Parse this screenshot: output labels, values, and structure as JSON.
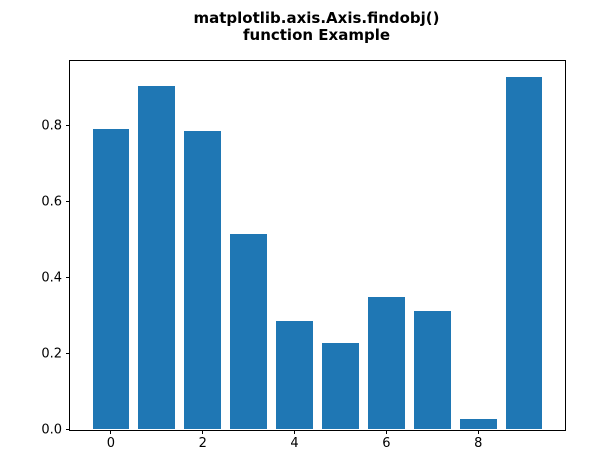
{
  "title": "matplotlib.axis.Axis.findobj()\nfunction Example",
  "colors": {
    "bar": "#1f77b4",
    "spine": "#000000",
    "text": "#000000",
    "background": "#ffffff"
  },
  "chart_data": {
    "type": "bar",
    "title": "matplotlib.axis.Axis.findobj()\nfunction Example",
    "xlabel": "",
    "ylabel": "",
    "x": [
      0,
      1,
      2,
      3,
      4,
      5,
      6,
      7,
      8,
      9
    ],
    "values": [
      0.79,
      0.905,
      0.785,
      0.515,
      0.286,
      0.228,
      0.349,
      0.313,
      0.028,
      0.928
    ],
    "bar_width": 0.8,
    "xlim": [
      -0.89,
      9.89
    ],
    "ylim": [
      0,
      0.97
    ],
    "xticks": {
      "values": [
        0,
        2,
        4,
        6,
        8
      ],
      "labels": [
        "0",
        "2",
        "4",
        "6",
        "8"
      ]
    },
    "yticks": {
      "values": [
        0.0,
        0.2,
        0.4,
        0.6,
        0.8
      ],
      "labels": [
        "0.0",
        "0.2",
        "0.4",
        "0.6",
        "0.8"
      ]
    },
    "grid": false,
    "legend": null
  }
}
